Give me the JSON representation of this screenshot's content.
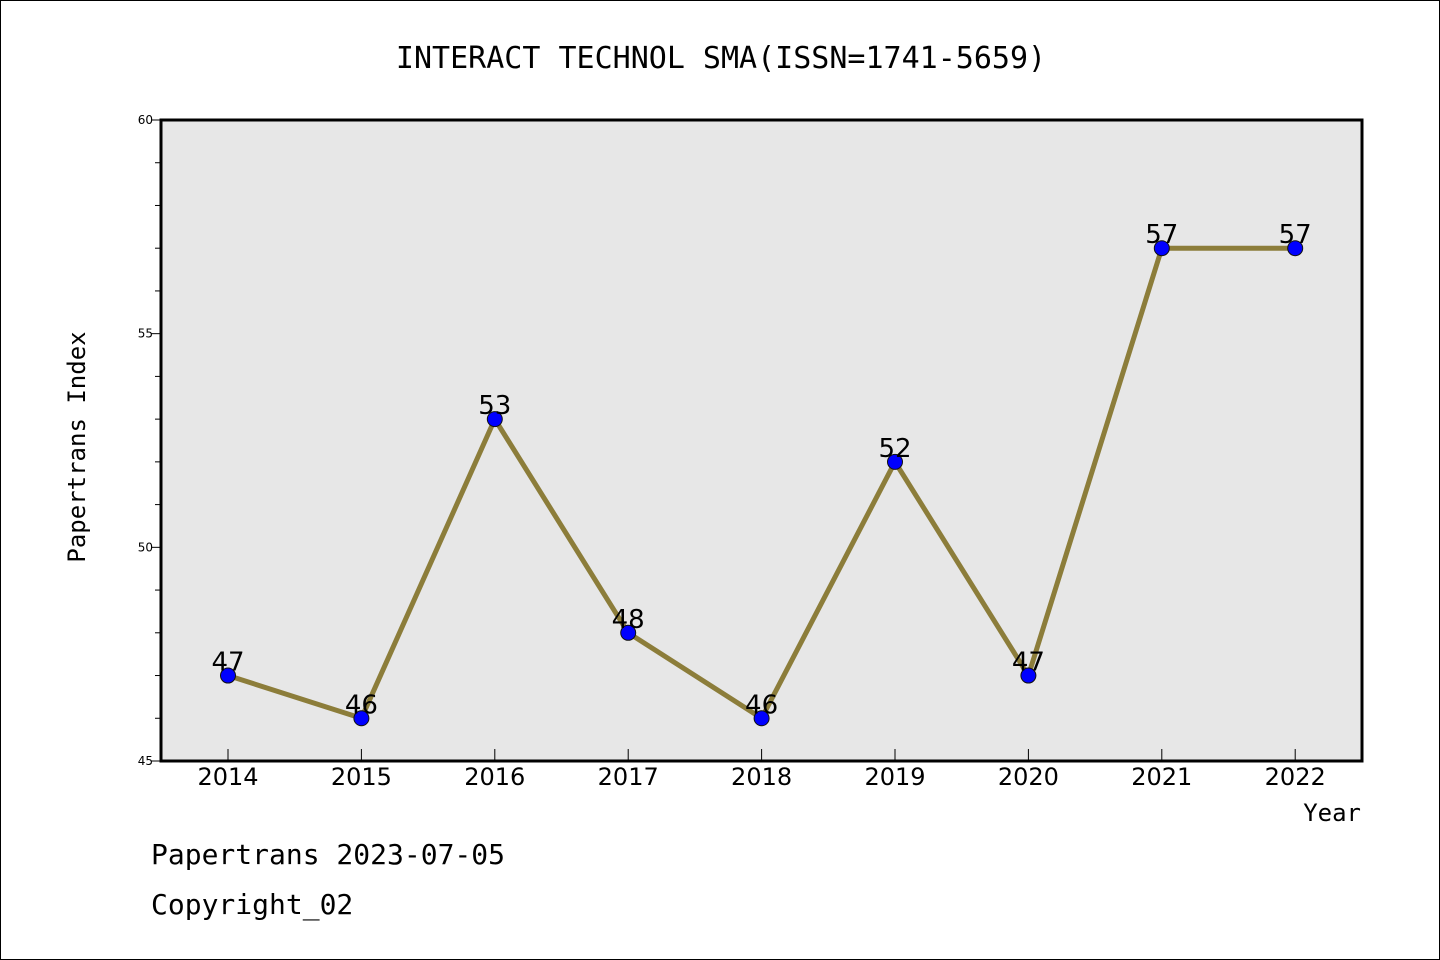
{
  "chart_data": {
    "type": "line",
    "title": "INTERACT TECHNOL SMA(ISSN=1741-5659)",
    "xlabel": "Year",
    "ylabel": "Papertrans Index",
    "x": [
      "2014",
      "2015",
      "2016",
      "2017",
      "2018",
      "2019",
      "2020",
      "2021",
      "2022"
    ],
    "series": [
      {
        "values": [
          47,
          46,
          53,
          48,
          46,
          52,
          47,
          57,
          57
        ]
      }
    ],
    "ylim": [
      45,
      60
    ],
    "yticks_major": [
      45,
      50,
      55,
      60
    ],
    "ytick_labels": [
      "45",
      "50",
      "55",
      "60"
    ],
    "ytick_minor_step": 1,
    "grid": false,
    "data_labels": true,
    "colors": {
      "line": "#8c7d3a",
      "marker": "#0000ff",
      "plot_background": "#e7e7e7"
    }
  },
  "footer": {
    "line1": "Papertrans 2023-07-05",
    "line2": "Copyright_02"
  }
}
